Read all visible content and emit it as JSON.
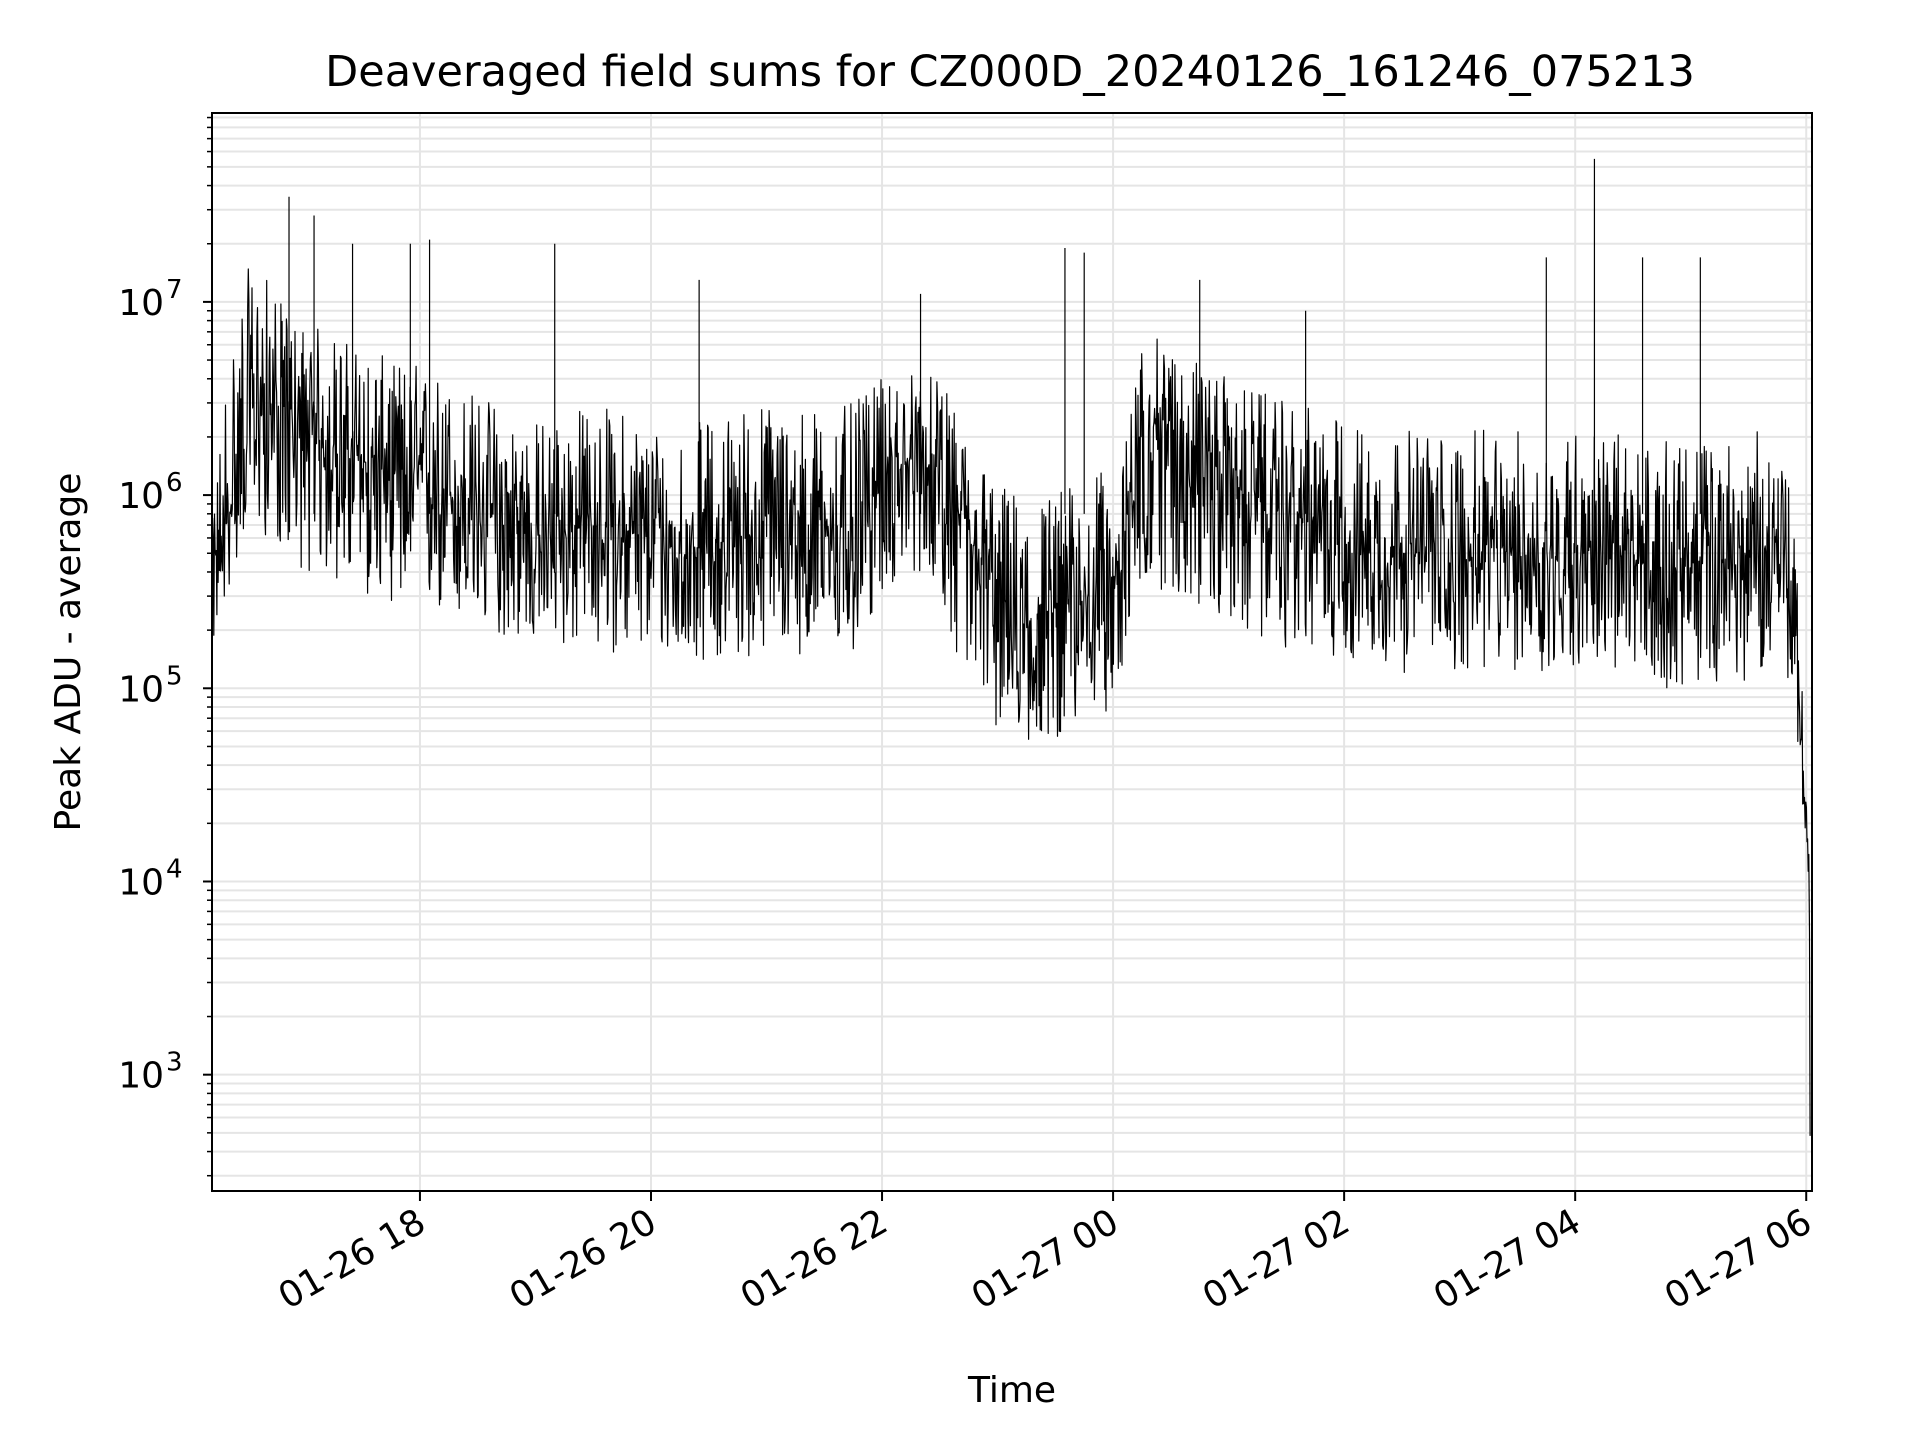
{
  "chart_data": {
    "type": "line",
    "title": "Deaveraged field sums for CZ000D_20240126_161246_075213",
    "xlabel": "Time",
    "ylabel": "Peak ADU - average",
    "yscale": "log",
    "ylim": [
      250,
      95000000
    ],
    "xlim": [
      "2024-01-26 16:12",
      "2024-01-27 06:03"
    ],
    "grid": true,
    "line_color": "#000000",
    "grid_color": "#e5e5e5",
    "x_ticks": [
      {
        "value": "2024-01-26 18:00",
        "label": "01-26 18"
      },
      {
        "value": "2024-01-26 20:00",
        "label": "01-26 20"
      },
      {
        "value": "2024-01-26 22:00",
        "label": "01-26 22"
      },
      {
        "value": "2024-01-27 00:00",
        "label": "01-27 00"
      },
      {
        "value": "2024-01-27 02:00",
        "label": "01-27 02"
      },
      {
        "value": "2024-01-27 04:00",
        "label": "01-27 04"
      },
      {
        "value": "2024-01-27 06:00",
        "label": "01-27 06"
      }
    ],
    "y_ticks": [
      {
        "value": 1000,
        "base": "10",
        "exp": "3"
      },
      {
        "value": 10000,
        "base": "10",
        "exp": "4"
      },
      {
        "value": 100000,
        "base": "10",
        "exp": "5"
      },
      {
        "value": 1000000,
        "base": "10",
        "exp": "6"
      },
      {
        "value": 10000000,
        "base": "10",
        "exp": "7"
      }
    ],
    "series": [
      {
        "x": [
          "2024-01-26 16:12",
          "2024-01-26 16:20",
          "2024-01-26 16:30",
          "2024-01-26 16:40",
          "2024-01-26 16:50",
          "2024-01-26 17:00",
          "2024-01-26 17:15",
          "2024-01-26 17:30",
          "2024-01-26 17:45",
          "2024-01-26 18:00",
          "2024-01-26 18:15",
          "2024-01-26 18:30",
          "2024-01-26 18:45",
          "2024-01-26 19:00",
          "2024-01-26 19:15",
          "2024-01-26 19:30",
          "2024-01-26 19:45",
          "2024-01-26 20:00",
          "2024-01-26 20:15",
          "2024-01-26 20:30",
          "2024-01-26 20:45",
          "2024-01-26 21:00",
          "2024-01-26 21:15",
          "2024-01-26 21:30",
          "2024-01-26 21:45",
          "2024-01-26 22:00",
          "2024-01-26 22:15",
          "2024-01-26 22:30",
          "2024-01-26 22:40",
          "2024-01-26 23:00",
          "2024-01-26 23:15",
          "2024-01-26 23:30",
          "2024-01-26 23:45",
          "2024-01-27 00:05",
          "2024-01-27 00:15",
          "2024-01-27 00:30",
          "2024-01-27 00:45",
          "2024-01-27 01:00",
          "2024-01-27 01:15",
          "2024-01-27 01:30",
          "2024-01-27 01:45",
          "2024-01-27 02:00",
          "2024-01-27 02:15",
          "2024-01-27 02:30",
          "2024-01-27 02:45",
          "2024-01-27 03:00",
          "2024-01-27 03:15",
          "2024-01-27 03:30",
          "2024-01-27 03:45",
          "2024-01-27 04:00",
          "2024-01-27 04:15",
          "2024-01-27 04:30",
          "2024-01-27 04:45",
          "2024-01-27 05:00",
          "2024-01-27 05:15",
          "2024-01-27 05:30",
          "2024-01-27 05:45",
          "2024-01-27 05:52",
          "2024-01-27 05:56",
          "2024-01-27 05:59",
          "2024-01-27 06:01",
          "2024-01-27 06:02"
        ],
        "y": [
          400000,
          700000,
          2500000,
          3000000,
          2800000,
          2000000,
          1800000,
          1500000,
          1300000,
          1200000,
          1000000,
          800000,
          700000,
          600000,
          650000,
          700000,
          650000,
          600000,
          500000,
          550000,
          600000,
          650000,
          700000,
          650000,
          700000,
          1200000,
          1500000,
          1300000,
          700000,
          300000,
          200000,
          250000,
          300000,
          400000,
          2500000,
          2200000,
          1800000,
          1200000,
          900000,
          800000,
          700000,
          600000,
          550000,
          500000,
          500000,
          450000,
          500000,
          500000,
          450000,
          550000,
          500000,
          450000,
          420000,
          430000,
          440000,
          450000,
          600000,
          300000,
          100000,
          30000,
          20000,
          500
        ],
        "low": [
          150000,
          300000,
          700000,
          600000,
          500000,
          400000,
          350000,
          300000,
          280000,
          250000,
          220000,
          200000,
          180000,
          170000,
          160000,
          160000,
          150000,
          150000,
          140000,
          140000,
          140000,
          150000,
          150000,
          150000,
          140000,
          300000,
          400000,
          350000,
          120000,
          60000,
          50000,
          55000,
          60000,
          90000,
          350000,
          300000,
          250000,
          200000,
          180000,
          160000,
          150000,
          140000,
          130000,
          120000,
          120000,
          120000,
          120000,
          120000,
          110000,
          130000,
          120000,
          110000,
          100000,
          100000,
          110000,
          110000,
          150000,
          100000,
          40000,
          20000,
          10000,
          400
        ],
        "high": [
          700000,
          6000000,
          15000000,
          14000000,
          9000000,
          8000000,
          7000000,
          6000000,
          5000000,
          5000000,
          4000000,
          3500000,
          3000000,
          2500000,
          2800000,
          3000000,
          2800000,
          2500000,
          2300000,
          2500000,
          3000000,
          3200000,
          3000000,
          2800000,
          3000000,
          4000000,
          4500000,
          4000000,
          2500000,
          1200000,
          1000000,
          1100000,
          1200000,
          1500000,
          7000000,
          6000000,
          5000000,
          4000000,
          3500000,
          3000000,
          2800000,
          2500000,
          2300000,
          2200000,
          2200000,
          2100000,
          2200000,
          2200000,
          2000000,
          2300000,
          2200000,
          2000000,
          1900000,
          1900000,
          2000000,
          2000000,
          2500000,
          1000000,
          300000,
          60000,
          40000,
          3000
        ]
      }
    ],
    "spikes": [
      {
        "x": "2024-01-26 16:52",
        "y": 35000000
      },
      {
        "x": "2024-01-26 17:05",
        "y": 28000000
      },
      {
        "x": "2024-01-26 17:25",
        "y": 20000000
      },
      {
        "x": "2024-01-26 17:55",
        "y": 20000000
      },
      {
        "x": "2024-01-26 18:05",
        "y": 21000000
      },
      {
        "x": "2024-01-26 19:10",
        "y": 20000000
      },
      {
        "x": "2024-01-26 20:25",
        "y": 13000000
      },
      {
        "x": "2024-01-26 22:20",
        "y": 11000000
      },
      {
        "x": "2024-01-26 23:35",
        "y": 19000000
      },
      {
        "x": "2024-01-26 23:45",
        "y": 18000000
      },
      {
        "x": "2024-01-27 00:45",
        "y": 13000000
      },
      {
        "x": "2024-01-27 01:40",
        "y": 9000000
      },
      {
        "x": "2024-01-27 03:45",
        "y": 17000000
      },
      {
        "x": "2024-01-27 04:10",
        "y": 55000000
      },
      {
        "x": "2024-01-27 04:35",
        "y": 17000000
      },
      {
        "x": "2024-01-27 05:05",
        "y": 17000000
      }
    ]
  }
}
